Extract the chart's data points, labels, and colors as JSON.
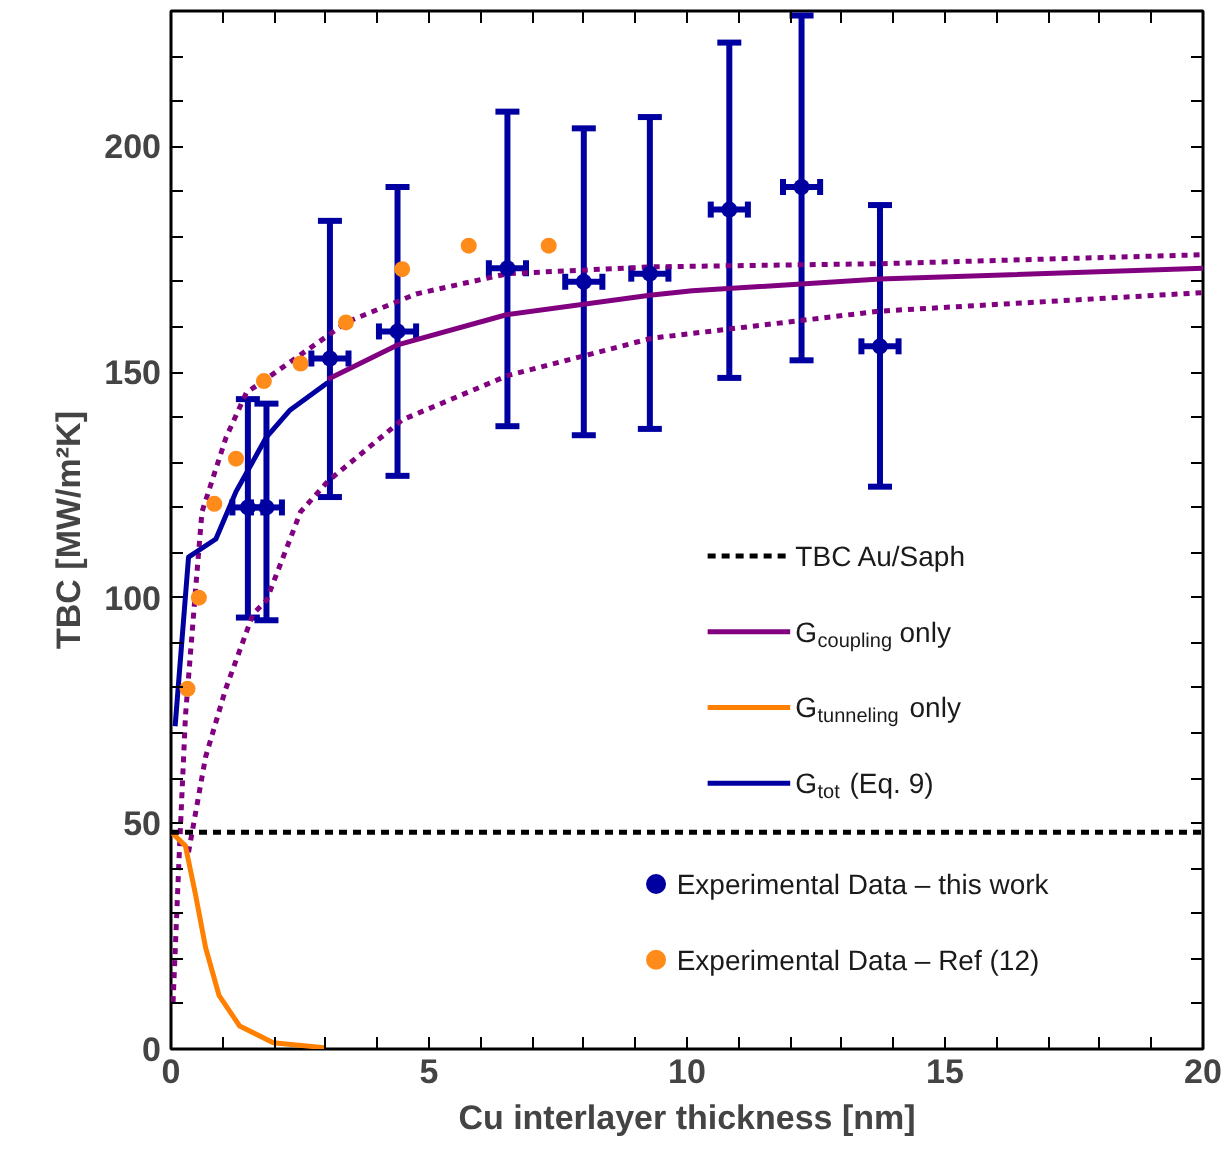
{
  "chart_data": {
    "type": "line",
    "xlabel": "Cu interlayer thickness [nm]",
    "ylabel": "TBC [MW/m²K]",
    "xlim": [
      0,
      20
    ],
    "ylim": [
      0,
      230
    ],
    "xticks": [
      0,
      {
        "value": 1,
        "label": null
      },
      {
        "value": 2,
        "label": null
      },
      {
        "value": 3,
        "label": null
      },
      {
        "value": 4,
        "label": null
      },
      5,
      {
        "value": 6,
        "label": null
      },
      {
        "value": 7,
        "label": null
      },
      {
        "value": 8,
        "label": null
      },
      {
        "value": 9,
        "label": null
      },
      10,
      {
        "value": 11,
        "label": null
      },
      {
        "value": 12,
        "label": null
      },
      {
        "value": 13,
        "label": null
      },
      {
        "value": 14,
        "label": null
      },
      15,
      {
        "value": 16,
        "label": null
      },
      {
        "value": 17,
        "label": null
      },
      {
        "value": 18,
        "label": null
      },
      {
        "value": 19,
        "label": null
      },
      20
    ],
    "yticks": [
      0,
      {
        "value": 10,
        "label": null
      },
      {
        "value": 20,
        "label": null
      },
      {
        "value": 30,
        "label": null
      },
      {
        "value": 40,
        "label": null
      },
      50,
      {
        "value": 60,
        "label": null
      },
      {
        "value": 70,
        "label": null
      },
      {
        "value": 80,
        "label": null
      },
      {
        "value": 90,
        "label": null
      },
      100,
      {
        "value": 110,
        "label": null
      },
      {
        "value": 120,
        "label": null
      },
      {
        "value": 130,
        "label": null
      },
      {
        "value": 140,
        "label": null
      },
      150,
      {
        "value": 160,
        "label": null
      },
      {
        "value": 170,
        "label": null
      },
      {
        "value": 180,
        "label": null
      },
      {
        "value": 190,
        "label": null
      },
      200,
      {
        "value": 210,
        "label": null
      },
      {
        "value": 220,
        "label": null
      }
    ],
    "grid": false,
    "legend": "bottom right",
    "ref_lines": [
      {
        "axis": "y",
        "value": 48,
        "label": "TBC Au/Saph",
        "color": "#000000",
        "line_style": "dashed"
      }
    ],
    "series": [
      {
        "color": "#800080",
        "line_style": "dotted",
        "x": [
          0.04,
          0.15,
          0.28,
          0.47,
          0.6,
          1.07,
          1.46,
          2.12,
          3.43,
          4.75,
          6.52,
          9.32,
          13.74,
          20
        ],
        "values": [
          10.4,
          40.6,
          73.8,
          100.9,
          119,
          135.6,
          145.4,
          150.7,
          161.2,
          167.3,
          171.8,
          173.3,
          174,
          176
        ]
      },
      {
        "color": "#800080",
        "line_style": "dotted",
        "x": [
          0.34,
          0.67,
          1.06,
          1.59,
          1.85,
          2.51,
          3.04,
          4.48,
          6.52,
          9.32,
          13.74,
          20
        ],
        "values": [
          43.6,
          64.7,
          79.8,
          96.4,
          99.4,
          119,
          125.8,
          139.4,
          149.2,
          157.5,
          163.5,
          167.6
        ]
      },
      {
        "name": "G$_{coupling}$ only",
        "color": "#800080",
        "x": [
          3.04,
          4.39,
          6.5,
          9.28,
          10.1,
          13.74,
          20
        ],
        "values": [
          148.4,
          156,
          162.7,
          167,
          168,
          170.6,
          173
        ]
      },
      {
        "name": "G$_{tunneling}$ only",
        "color": "#ff8000",
        "x": [
          0.01,
          0.28,
          0.47,
          0.67,
          0.93,
          1.33,
          1.98,
          2.97
        ],
        "values": [
          48,
          45,
          34.5,
          22.5,
          11.9,
          5.1,
          1.4,
          0.3
        ]
      },
      {
        "name": "G$_{tot}$ (Eq. 9)",
        "color": "#0000a0",
        "x": [
          0.08,
          0.34,
          0.87,
          1.26,
          1.85,
          2.31,
          3.04
        ],
        "values": [
          71.5,
          109,
          113,
          123.5,
          135.6,
          141.6,
          147.7
        ]
      },
      {
        "type": "scatter",
        "name": "Experimental Data – this work",
        "color": "#0000a0",
        "marker": "circle",
        "x": [
          1.49,
          1.85,
          3.08,
          4.39,
          6.52,
          8.0,
          9.28,
          10.82,
          12.22,
          13.74
        ],
        "values": [
          120,
          120,
          153,
          159,
          173,
          170,
          171.8,
          186,
          191,
          155.7
        ],
        "errors": [
          [
            95.6,
            144
          ],
          [
            95,
            143
          ],
          [
            122.3,
            183.5
          ],
          [
            127,
            191
          ],
          [
            138,
            207.7
          ],
          [
            136,
            204
          ],
          [
            137.4,
            206.5
          ],
          [
            148.7,
            223
          ],
          [
            152.6,
            229
          ],
          [
            124.6,
            187
          ]
        ],
        "xerrors": [
          0.3,
          0.3,
          0.36,
          0.36,
          0.36,
          0.36,
          0.36,
          0.36,
          0.36,
          0.36
        ]
      },
      {
        "type": "scatter",
        "name": "Experimental Data – Ref (12)",
        "color": "#ff8c1a",
        "marker": "circle",
        "x": [
          0.32,
          0.54,
          0.84,
          1.26,
          1.8,
          2.51,
          3.39,
          4.48,
          5.77,
          7.32
        ],
        "values": [
          79.8,
          100,
          120.8,
          130.8,
          148,
          151.9,
          161,
          172.8,
          178,
          178
        ]
      }
    ]
  }
}
